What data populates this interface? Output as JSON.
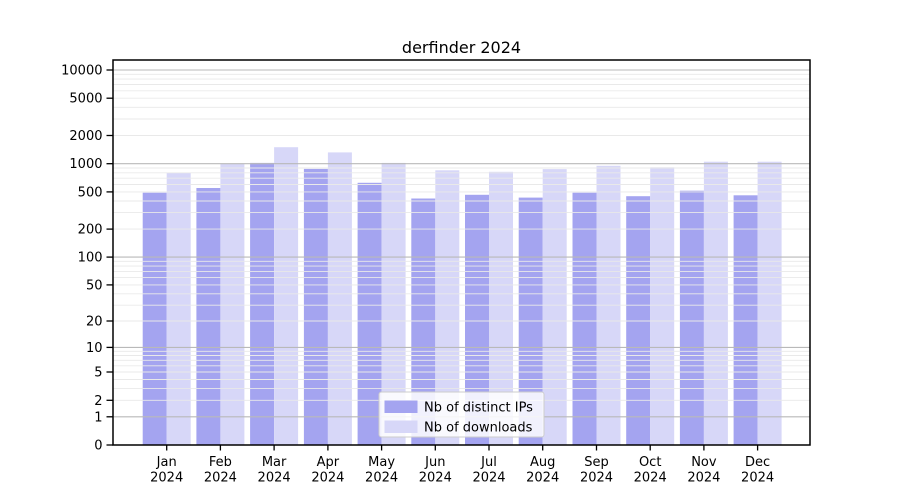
{
  "title": "derfinder 2024",
  "chart_data": {
    "type": "bar",
    "title": "derfinder 2024",
    "categories": [
      "Jan",
      "Feb",
      "Mar",
      "Apr",
      "May",
      "Jun",
      "Jul",
      "Aug",
      "Sep",
      "Oct",
      "Nov",
      "Dec"
    ],
    "year_label": "2024",
    "series": [
      {
        "name": "Nb of distinct IPs",
        "color": "#a4a4f0",
        "values": [
          490,
          550,
          1020,
          880,
          625,
          425,
          465,
          435,
          490,
          450,
          515,
          460
        ]
      },
      {
        "name": "Nb of downloads",
        "color": "#d7d7f8",
        "values": [
          800,
          1000,
          1500,
          1320,
          1020,
          850,
          820,
          875,
          950,
          915,
          1050,
          1050
        ]
      }
    ],
    "yscale": "log10(value+1)",
    "ylim": [
      0,
      10000
    ],
    "yticks": [
      0,
      1,
      2,
      5,
      10,
      20,
      50,
      100,
      200,
      500,
      1000,
      2000,
      5000,
      10000
    ],
    "grid": {
      "major_lines": [
        1,
        10,
        100,
        1000,
        10000
      ],
      "minor_mantissas": [
        2,
        3,
        4,
        5,
        6,
        7,
        8,
        9
      ],
      "minor_decades": [
        1,
        10,
        100,
        1000
      ]
    },
    "legend_position": "lower center",
    "colors": {
      "axis": "#000000",
      "major_grid": "#b9b9b9",
      "minor_grid": "#e9e9e9",
      "legend_border": "#cccccc",
      "legend_bg": "#ffffff"
    }
  }
}
